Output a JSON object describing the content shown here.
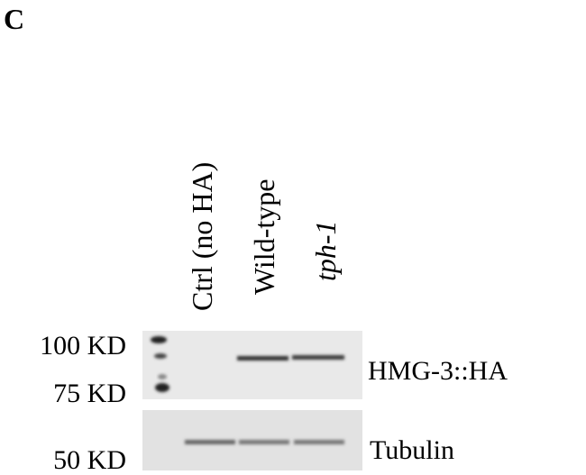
{
  "panel_label": "C",
  "lanes": [
    "Ctrl (no HA)",
    "Wild-type",
    "tph-1"
  ],
  "markers": [
    "100 KD",
    "75 KD",
    "50 KD"
  ],
  "blots": [
    "HMG-3::HA",
    "Tubulin"
  ]
}
